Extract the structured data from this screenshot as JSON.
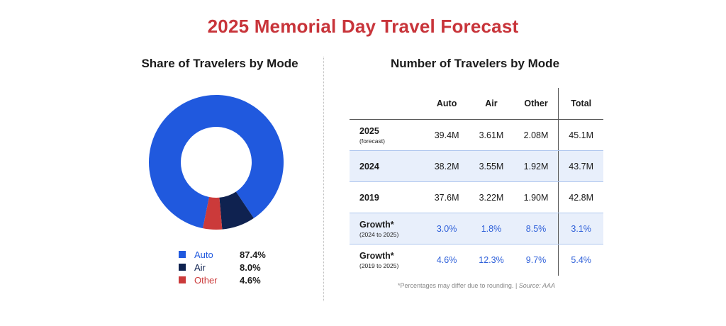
{
  "title": "2025 Memorial Day Travel Forecast",
  "left_title": "Share of Travelers by Mode",
  "right_title": "Number of Travelers by Mode",
  "colors": {
    "title": "#c8343a",
    "auto": "#2059de",
    "air": "#0f2250",
    "other": "#cb3a3a",
    "growth_text": "#2d5fd9"
  },
  "chart_data": [
    {
      "type": "pie",
      "donut": true,
      "title": "Share of Travelers by Mode",
      "categories": [
        "Auto",
        "Air",
        "Other"
      ],
      "values": [
        87.4,
        8.0,
        4.6
      ],
      "labels": [
        "87.4%",
        "8.0%",
        "4.6%"
      ],
      "colors": [
        "#2059de",
        "#0f2250",
        "#cb3a3a"
      ],
      "legend": "bottom"
    },
    {
      "type": "table",
      "title": "Number of Travelers by Mode",
      "columns": [
        "",
        "Auto",
        "Air",
        "Other",
        "Total"
      ],
      "rows": [
        {
          "label": "2025",
          "sub": "(forecast)",
          "values": [
            "39.4M",
            "3.61M",
            "2.08M",
            "45.1M"
          ],
          "shaded": false,
          "growth": false
        },
        {
          "label": "2024",
          "sub": "",
          "values": [
            "38.2M",
            "3.55M",
            "1.92M",
            "43.7M"
          ],
          "shaded": true,
          "growth": false
        },
        {
          "label": "2019",
          "sub": "",
          "values": [
            "37.6M",
            "3.22M",
            "1.90M",
            "42.8M"
          ],
          "shaded": false,
          "growth": false
        },
        {
          "label": "Growth*",
          "sub": "(2024 to 2025)",
          "values": [
            "3.0%",
            "1.8%",
            "8.5%",
            "3.1%"
          ],
          "shaded": true,
          "growth": true
        },
        {
          "label": "Growth*",
          "sub": "(2019 to 2025)",
          "values": [
            "4.6%",
            "12.3%",
            "9.7%",
            "5.4%"
          ],
          "shaded": false,
          "growth": true
        }
      ]
    }
  ],
  "footnote": {
    "text": "*Percentages may differ due to rounding. | ",
    "source": "Source: AAA"
  }
}
